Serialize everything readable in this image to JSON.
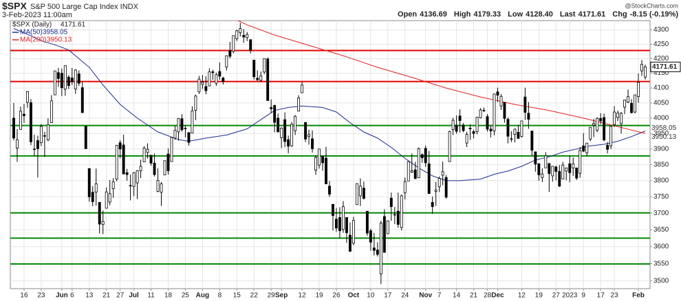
{
  "chart_data": {
    "type": "candlestick",
    "symbol": "$SPX",
    "subtitle": "S&P 500 Large Cap Index INDX",
    "datetime": "3-Feb-2023 11:00am",
    "watermark": "@StockCharts.com",
    "stats": [
      {
        "label": "Open",
        "value": "4136.69"
      },
      {
        "label": "High",
        "value": "4179.33"
      },
      {
        "label": "Low",
        "value": "4128.40"
      },
      {
        "label": "Last",
        "value": "4171.61"
      },
      {
        "label": "Chg",
        "value": "-8.15 (-0.19%)"
      }
    ],
    "name": "$SPX (Daily)",
    "last_label": "4171.61",
    "log_scale": true,
    "grid": true,
    "ylim": [
      3478,
      4333
    ],
    "yticks": [
      3500,
      3550,
      3600,
      3650,
      3700,
      3750,
      3800,
      3850,
      3900,
      3950,
      4000,
      4050,
      4100,
      4150,
      4200,
      4250,
      4300
    ],
    "xlim": [
      -1,
      185.4
    ],
    "xticks": [
      {
        "value": 3,
        "label": "16"
      },
      {
        "value": 8,
        "label": "23"
      },
      {
        "value": 14,
        "label": "Jun"
      },
      {
        "value": 17,
        "label": "6"
      },
      {
        "value": 22,
        "label": "13"
      },
      {
        "value": 27,
        "label": "21"
      },
      {
        "value": 31,
        "label": "27"
      },
      {
        "value": 35,
        "label": "Jul"
      },
      {
        "value": 40,
        "label": "11"
      },
      {
        "value": 45,
        "label": "18"
      },
      {
        "value": 50,
        "label": "25"
      },
      {
        "value": 55,
        "label": "Aug"
      },
      {
        "value": 60,
        "label": "8"
      },
      {
        "value": 65,
        "label": "15"
      },
      {
        "value": 70,
        "label": "22"
      },
      {
        "value": 75,
        "label": "29"
      },
      {
        "value": 78,
        "label": "Sep"
      },
      {
        "value": 84,
        "label": "12"
      },
      {
        "value": 89,
        "label": "19"
      },
      {
        "value": 94,
        "label": "26"
      },
      {
        "value": 99,
        "label": "Oct"
      },
      {
        "value": 104,
        "label": "10"
      },
      {
        "value": 109,
        "label": "17"
      },
      {
        "value": 114,
        "label": "24"
      },
      {
        "value": 120,
        "label": "Nov"
      },
      {
        "value": 124,
        "label": "7"
      },
      {
        "value": 129,
        "label": "14"
      },
      {
        "value": 134,
        "label": "21"
      },
      {
        "value": 138,
        "label": "28"
      },
      {
        "value": 141,
        "label": "Dec"
      },
      {
        "value": 148,
        "label": "12"
      },
      {
        "value": 153,
        "label": "19"
      },
      {
        "value": 158,
        "label": "27"
      },
      {
        "value": 162,
        "label": "2023"
      },
      {
        "value": 166,
        "label": "9"
      },
      {
        "value": 171,
        "label": "17"
      },
      {
        "value": 175,
        "label": "23"
      },
      {
        "value": 182,
        "label": "Feb"
      }
    ],
    "open": [
      4000,
      3903,
      3963,
      4013,
      4052,
      4051,
      3899,
      3927,
      3920,
      3943,
      3929,
      3985,
      4077,
      4152,
      4150,
      4096,
      4137,
      4134,
      4097,
      4148,
      4101,
      3974,
      3838,
      3764,
      3765,
      3733,
      3666,
      3715,
      3734,
      3775,
      3805,
      3920,
      3913,
      3825,
      3785,
      3782,
      3793,
      3831,
      3859,
      3889,
      3880,
      3855,
      3767,
      3764,
      3818,
      3884,
      3860,
      3935,
      3955,
      3998,
      3966,
      3953,
      3951,
      4026,
      4087,
      4112,
      4105,
      4107,
      4155,
      4116,
      4156,
      4134,
      4171,
      4227,
      4225,
      4269,
      4290,
      4281,
      4273,
      4266,
      4195,
      4133,
      4126,
      4154,
      4199,
      4035,
      4042,
      4000,
      3936,
      3995,
      3930,
      3910,
      3959,
      4023,
      4084,
      3986,
      3940,
      3933,
      3833,
      3849,
      3877,
      3871,
      3783,
      3727,
      3682,
      3687,
      3651,
      3687,
      3634,
      3610,
      3726,
      3753,
      3777,
      3706,
      3647,
      3596,
      3590,
      3520,
      3690,
      3638,
      3746,
      3696,
      3706,
      3657,
      3762,
      3799,
      3826,
      3834,
      3809,
      3882,
      3902,
      3853,
      3733,
      3767,
      3781,
      3817,
      3810,
      3860,
      3963,
      3977,
      4007,
      3977,
      3919,
      3967,
      3956,
      3956,
      4001,
      4024,
      4005,
      3964,
      3958,
      4087,
      4040,
      4052,
      3996,
      3933,
      3947,
      3954,
      3940,
      4070,
      4016,
      3958,
      3891,
      3853,
      3810,
      3840,
      3854,
      3815,
      3843,
      3829,
      3805,
      3830,
      3853,
      3840,
      3840,
      3823,
      3910,
      3888,
      3932,
      3977,
      3960,
      3999,
      4002,
      3912,
      3910,
      3979,
      4002,
      3982,
      4036,
      4053,
      4049,
      4020,
      4071,
      4158,
      4136.69
    ],
    "high": [
      4050,
      3964,
      4038,
      4047,
      4090,
      4063,
      3946,
      3943,
      3981,
      3955,
      3999,
      4076,
      4158,
      4168,
      4166,
      4177,
      4143,
      4168,
      4164,
      4160,
      4120,
      3974,
      3838,
      3783,
      3838,
      3733,
      3708,
      3779,
      3802,
      3808,
      3913,
      3928,
      3946,
      3837,
      3819,
      3827,
      3833,
      3866,
      3909,
      3918,
      3880,
      3885,
      3839,
      3796,
      3863,
      3902,
      3939,
      3975,
      4000,
      4013,
      3976,
      3953,
      4039,
      4078,
      4141,
      4144,
      4140,
      4167,
      4162,
      4152,
      4187,
      4138,
      4211,
      4258,
      4280,
      4301,
      4325,
      4303,
      4293,
      4266,
      4195,
      4160,
      4156,
      4200,
      4204,
      4062,
      4044,
      4015,
      3970,
      4019,
      3943,
      3987,
      4010,
      4076,
      4120,
      3986,
      3962,
      3960,
      3880,
      3900,
      3877,
      3907,
      3799,
      3727,
      3716,
      3718,
      3737,
      3688,
      3672,
      3689,
      3791,
      3807,
      3797,
      3706,
      3653,
      3641,
      3613,
      3677,
      3712,
      3677,
      3763,
      3719,
      3763,
      3757,
      3810,
      3862,
      3886,
      3859,
      3905,
      3886,
      3911,
      3894,
      3751,
      3796,
      3813,
      3860,
      3818,
      3959,
      4001,
      4009,
      4029,
      3984,
      3955,
      3980,
      3962,
      4004,
      4033,
      4035,
      4013,
      3976,
      4080,
      4101,
      4080,
      4052,
      4002,
      3957,
      3966,
      3977,
      3991,
      4101,
      4053,
      3958,
      3891,
      3855,
      3839,
      3890,
      3854,
      3846,
      3847,
      3849,
      3859,
      3840,
      3879,
      3873,
      3840,
      3906,
      3951,
      3919,
      3970,
      3997,
      4003,
      4016,
      4015,
      3922,
      3974,
      4039,
      4025,
      4020,
      4061,
      4095,
      4063,
      4077,
      4149,
      4195,
      4179.33
    ],
    "low": [
      3928,
      3859,
      3963,
      3984,
      4034,
      3912,
      3877,
      3810,
      3909,
      3875,
      3925,
      3984,
      4077,
      4104,
      4073,
      4074,
      4097,
      4110,
      4080,
      4107,
      4017,
      3900,
      3735,
      3721,
      3723,
      3639,
      3637,
      3715,
      3724,
      3747,
      3798,
      3870,
      3820,
      3800,
      3739,
      3752,
      3743,
      3808,
      3859,
      3870,
      3847,
      3813,
      3764,
      3722,
      3818,
      3819,
      3860,
      3929,
      3927,
      3956,
      3937,
      3911,
      3951,
      3993,
      4080,
      4097,
      4079,
      4107,
      4128,
      4107,
      4128,
      4112,
      4159,
      4201,
      4218,
      4261,
      4277,
      4255,
      4261,
      4218,
      4129,
      4124,
      4120,
      4147,
      4057,
      4017,
      3954,
      3954,
      3903,
      3906,
      3886,
      3907,
      3945,
      4022,
      4084,
      3922,
      3914,
      3888,
      3818,
      3838,
      3831,
      3789,
      3750,
      3648,
      3644,
      3624,
      3641,
      3611,
      3585,
      3604,
      3726,
      3722,
      3742,
      3632,
      3588,
      3574,
      3571,
      3491,
      3583,
      3638,
      3677,
      3667,
      3656,
      3648,
      3742,
      3799,
      3824,
      3804,
      3809,
      3856,
      3843,
      3759,
      3698,
      3722,
      3765,
      3786,
      3744,
      3860,
      3945,
      3949,
      3953,
      3954,
      3906,
      3929,
      3934,
      3947,
      3999,
      4020,
      3956,
      3937,
      3944,
      4053,
      4027,
      3985,
      3918,
      3922,
      3921,
      3933,
      3937,
      3994,
      3965,
      3879,
      3828,
      3800,
      3796,
      3840,
      3765,
      3797,
      3801,
      3780,
      3805,
      3801,
      3795,
      3815,
      3802,
      3809,
      3890,
      3877,
      3925,
      3938,
      3954,
      3980,
      3925,
      3886,
      3900,
      3971,
      3990,
      3950,
      4013,
      4049,
      4015,
      4016,
      4051,
      4141,
      4128.4
    ],
    "close": [
      3935,
      3930,
      4023,
      4008,
      4088,
      3923,
      3900,
      3901,
      3973,
      3941,
      3978,
      4057,
      4158,
      4132,
      4101,
      4176,
      4108,
      4121,
      4161,
      4116,
      4018,
      3901,
      3750,
      3735,
      3790,
      3667,
      3675,
      3765,
      3760,
      3796,
      3912,
      3900,
      3821,
      3819,
      3785,
      3825,
      3831,
      3845,
      3903,
      3899,
      3855,
      3819,
      3801,
      3790,
      3863,
      3831,
      3937,
      3960,
      3999,
      3962,
      3967,
      3921,
      4024,
      4073,
      4130,
      4119,
      4091,
      4155,
      4152,
      4145,
      4140,
      4122,
      4210,
      4208,
      4280,
      4297,
      4305,
      4275,
      4284,
      4228,
      4138,
      4128,
      4141,
      4200,
      4058,
      4031,
      3986,
      3955,
      3967,
      3924,
      3909,
      3980,
      4006,
      4067,
      4110,
      3932,
      3946,
      3901,
      3873,
      3900,
      3856,
      3790,
      3758,
      3693,
      3655,
      3647,
      3720,
      3641,
      3586,
      3678,
      3791,
      3783,
      3745,
      3640,
      3613,
      3589,
      3577,
      3670,
      3583,
      3677,
      3720,
      3695,
      3666,
      3753,
      3797,
      3860,
      3831,
      3807,
      3901,
      3872,
      3856,
      3760,
      3720,
      3771,
      3807,
      3828,
      3749,
      3956,
      3993,
      3957,
      3992,
      3959,
      3947,
      3965,
      3950,
      4003,
      4027,
      4026,
      3964,
      3958,
      4080,
      4076,
      4072,
      3999,
      3941,
      3933,
      3964,
      3934,
      3991,
      4019,
      3996,
      3896,
      3852,
      3818,
      3821,
      3879,
      3822,
      3845,
      3829,
      3783,
      3849,
      3840,
      3825,
      3853,
      3808,
      3895,
      3893,
      3919,
      3970,
      3983,
      3999,
      3991,
      3929,
      3899,
      3973,
      4020,
      4017,
      4016,
      4060,
      4071,
      4018,
      4077,
      4119,
      4180,
      4171.61
    ],
    "series": [
      {
        "name": "MA(50)",
        "color": "#1c2a8c",
        "last_label": "3958.05",
        "x": [
          0,
          4,
          8,
          12,
          16,
          22,
          26,
          31,
          36,
          42,
          48,
          51,
          56,
          62,
          68,
          72,
          76,
          80,
          84,
          90,
          94,
          98,
          102,
          106,
          110,
          114,
          118,
          122,
          126,
          130,
          136,
          140,
          144,
          148,
          152,
          156,
          160,
          164,
          168,
          172,
          176,
          180,
          184
        ],
        "values": [
          4305,
          4285,
          4262,
          4248,
          4230,
          4170,
          4110,
          4045,
          4000,
          3955,
          3930,
          3925,
          3935,
          3945,
          3965,
          3995,
          4025,
          4035,
          4040,
          4035,
          4020,
          3985,
          3955,
          3935,
          3905,
          3870,
          3840,
          3815,
          3800,
          3800,
          3805,
          3820,
          3830,
          3845,
          3865,
          3875,
          3890,
          3900,
          3910,
          3915,
          3925,
          3940,
          3958.05
        ]
      },
      {
        "name": "MA(200)",
        "color": "#e02020",
        "last_label": "3950.13",
        "x": [
          65,
          68,
          72,
          76,
          86,
          96,
          106,
          116,
          126,
          136,
          146,
          156,
          166,
          176,
          184
        ],
        "values": [
          4335,
          4318,
          4300,
          4282,
          4246,
          4210,
          4170,
          4136,
          4100,
          4070,
          4045,
          4025,
          4000,
          3972,
          3950.13
        ]
      }
    ],
    "levels": [
      {
        "value": 4228,
        "color": "#e00000"
      },
      {
        "value": 4122,
        "color": "#e00000"
      },
      {
        "value": 3976,
        "color": "#008a00"
      },
      {
        "value": 3878,
        "color": "#008a00"
      },
      {
        "value": 3701,
        "color": "#008a00"
      },
      {
        "value": 3625,
        "color": "#008a00"
      },
      {
        "value": 3549,
        "color": "#008a00"
      }
    ]
  }
}
